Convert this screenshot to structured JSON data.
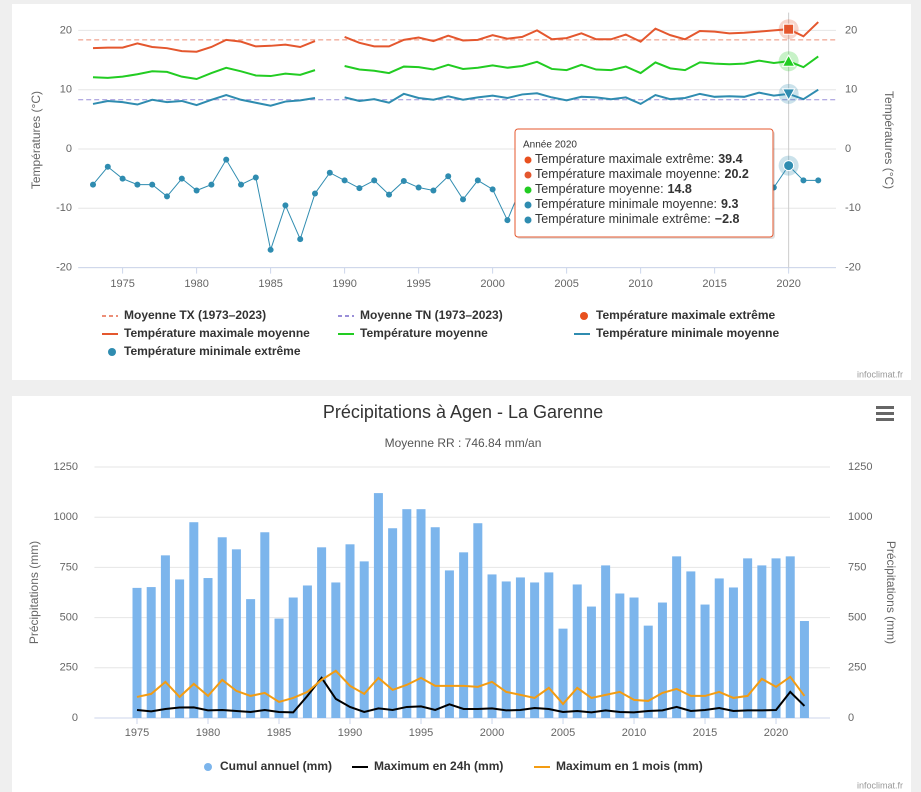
{
  "chart_data": [
    {
      "type": "line",
      "y_label": "Températures (°C)",
      "y2_label": "Températures (°C)",
      "x": [
        1973,
        1974,
        1975,
        1976,
        1977,
        1978,
        1979,
        1980,
        1981,
        1982,
        1983,
        1984,
        1985,
        1986,
        1987,
        1988,
        1989,
        1990,
        1991,
        1992,
        1993,
        1994,
        1995,
        1996,
        1997,
        1998,
        1999,
        2000,
        2001,
        2002,
        2003,
        2004,
        2005,
        2006,
        2007,
        2008,
        2009,
        2010,
        2011,
        2012,
        2013,
        2014,
        2015,
        2016,
        2017,
        2018,
        2019,
        2020,
        2021,
        2022
      ],
      "xlim": [
        1972,
        2023.2
      ],
      "xticks": [
        1975,
        1980,
        1985,
        1990,
        1995,
        2000,
        2005,
        2010,
        2015,
        2020
      ],
      "ylim": [
        -20,
        23
      ],
      "yticks": [
        -20,
        -10,
        0,
        10,
        20
      ],
      "y2lim": [
        -20,
        23
      ],
      "y2ticks": [
        -20,
        -10,
        0,
        10,
        20
      ],
      "grid": true,
      "reference_lines": [
        {
          "name": "Moyenne TX (1973–2023)",
          "color": "#ec8f78",
          "value": 18.4
        },
        {
          "name": "Moyenne TN (1973–2023)",
          "color": "#9a8fd8",
          "value": 8.3
        }
      ],
      "series": [
        {
          "name": "Température maximale extrême",
          "color": "#e8501e",
          "type": "scatter"
        },
        {
          "name": "Température maximale moyenne",
          "color": "#e4572e",
          "type": "line",
          "marker": "square",
          "values": [
            17.0,
            17.1,
            17.1,
            17.8,
            17.2,
            17.0,
            16.5,
            16.4,
            17.2,
            18.4,
            18.1,
            17.3,
            17.4,
            17.6,
            17.2,
            18.2,
            null,
            18.9,
            17.9,
            17.3,
            17.3,
            18.4,
            18.8,
            18.2,
            19.1,
            18.3,
            18.4,
            19.2,
            18.6,
            18.9,
            20.0,
            18.5,
            18.7,
            19.5,
            18.5,
            18.5,
            19.3,
            18.1,
            20.3,
            19.2,
            18.5,
            19.9,
            19.8,
            19.5,
            19.6,
            19.8,
            20.0,
            20.2,
            19.0,
            21.4
          ]
        },
        {
          "name": "Température moyenne",
          "color": "#22cc22",
          "type": "line",
          "marker": "triangle",
          "values": [
            12.1,
            12.0,
            12.2,
            12.6,
            13.1,
            13.0,
            12.2,
            11.8,
            12.8,
            13.7,
            13.1,
            12.4,
            12.3,
            12.7,
            12.5,
            13.3,
            null,
            14.0,
            13.4,
            13.2,
            12.8,
            13.9,
            13.8,
            13.4,
            14.2,
            13.5,
            13.7,
            14.1,
            13.7,
            14.0,
            14.7,
            13.5,
            13.3,
            14.2,
            13.4,
            13.3,
            13.9,
            12.8,
            14.6,
            13.6,
            13.3,
            14.6,
            14.4,
            14.3,
            14.4,
            14.9,
            14.5,
            14.8,
            13.8,
            15.6
          ]
        },
        {
          "name": "Température minimale moyenne",
          "color": "#2f8cb0",
          "type": "line",
          "marker": "triangle-down",
          "values": [
            7.6,
            8.1,
            7.9,
            7.5,
            8.3,
            7.9,
            8.1,
            7.4,
            8.3,
            9.1,
            8.3,
            7.8,
            7.3,
            8.0,
            8.2,
            8.6,
            null,
            8.7,
            8.1,
            8.4,
            7.8,
            9.3,
            8.6,
            8.3,
            8.9,
            8.3,
            8.7,
            9.0,
            8.6,
            9.2,
            9.4,
            8.7,
            8.2,
            8.8,
            8.7,
            8.4,
            8.7,
            7.6,
            9.1,
            8.4,
            8.6,
            9.3,
            8.8,
            8.9,
            8.8,
            9.5,
            9.0,
            9.3,
            8.4,
            10.0
          ]
        },
        {
          "name": "Température minimale extrême",
          "color": "#2f8cb0",
          "type": "scatter",
          "connect": true,
          "marker": "circle",
          "values": [
            -6,
            -3,
            -5,
            -6,
            -6,
            -8,
            -5,
            -7,
            -6,
            -1.8,
            -6,
            -4.8,
            -17,
            -9.5,
            -15.2,
            -7.5,
            -4,
            -5.3,
            -6.6,
            -5.3,
            -7.7,
            -5.4,
            -6.5,
            -7,
            -4.6,
            -8.5,
            -5.3,
            -6.8,
            -12,
            -6,
            -5.5,
            -7,
            -10,
            -6.5,
            -5.5,
            -6,
            -8,
            -9,
            -5,
            -13.5,
            -7,
            -4,
            -6.3,
            -5,
            -8,
            -7.8,
            -6.5,
            -2.8,
            -5.3,
            -5.3
          ]
        }
      ],
      "tooltip": {
        "title": "Année 2020",
        "x": 2020,
        "items": [
          {
            "label": "Température maximale extrême:",
            "value": 39.4,
            "color": "#e8501e"
          },
          {
            "label": "Température maximale moyenne:",
            "value": 20.2,
            "color": "#e4572e"
          },
          {
            "label": "Température moyenne:",
            "value": 14.8,
            "color": "#22cc22"
          },
          {
            "label": "Température minimale moyenne:",
            "value": 9.3,
            "color": "#2f8cb0"
          },
          {
            "label": "Température minimale extrême:",
            "value": -2.8,
            "value_label": "−2.8",
            "color": "#2f8cb0"
          }
        ]
      },
      "credit": "infoclimat.fr"
    },
    {
      "type": "bar",
      "title": "Précipitations à Agen - La Garenne",
      "subtitle": "Moyenne RR : 746.84 mm/an",
      "y_label": "Précipitations (mm)",
      "y2_label": "Précipitations (mm)",
      "x": [
        1975,
        1976,
        1977,
        1978,
        1979,
        1980,
        1981,
        1982,
        1983,
        1984,
        1985,
        1986,
        1987,
        1988,
        1989,
        1990,
        1991,
        1992,
        1993,
        1994,
        1995,
        1996,
        1997,
        1998,
        1999,
        2000,
        2001,
        2002,
        2003,
        2004,
        2005,
        2006,
        2007,
        2008,
        2009,
        2010,
        2011,
        2012,
        2013,
        2014,
        2015,
        2016,
        2017,
        2018,
        2019,
        2020,
        2021,
        2022
      ],
      "xlim": [
        1972,
        2023.8
      ],
      "xticks": [
        1975,
        1980,
        1985,
        1990,
        1995,
        2000,
        2005,
        2010,
        2015,
        2020
      ],
      "ylim": [
        0,
        1250
      ],
      "yticks": [
        0,
        250,
        500,
        750,
        1000,
        1250
      ],
      "y2lim": [
        0,
        1250
      ],
      "y2ticks": [
        0,
        250,
        500,
        750,
        1000,
        1250
      ],
      "grid": true,
      "series": [
        {
          "name": "Cumul annuel (mm)",
          "color": "#7cb5ec",
          "type": "bar",
          "values": [
            648,
            652,
            810,
            690,
            975,
            697,
            900,
            840,
            592,
            925,
            495,
            600,
            660,
            850,
            675,
            865,
            780,
            1120,
            945,
            1040,
            1040,
            950,
            735,
            825,
            970,
            715,
            680,
            700,
            675,
            725,
            445,
            665,
            555,
            760,
            620,
            600,
            460,
            575,
            805,
            730,
            565,
            695,
            650,
            795,
            760,
            795,
            805,
            483
          ]
        },
        {
          "name": "Maximum en 24h (mm)",
          "color": "#000000",
          "type": "line",
          "values": [
            40,
            33,
            45,
            52,
            53,
            38,
            40,
            35,
            30,
            40,
            30,
            28,
            110,
            200,
            95,
            55,
            30,
            48,
            40,
            55,
            58,
            40,
            68,
            45,
            45,
            48,
            38,
            40,
            50,
            45,
            30,
            35,
            28,
            38,
            30,
            28,
            35,
            38,
            55,
            35,
            40,
            50,
            35,
            38,
            38,
            40,
            130,
            60
          ]
        },
        {
          "name": "Maximum en 1 mois (mm)",
          "color": "#f39c12",
          "type": "line",
          "values": [
            105,
            120,
            180,
            105,
            170,
            110,
            190,
            135,
            110,
            125,
            80,
            100,
            130,
            190,
            235,
            160,
            120,
            200,
            140,
            165,
            200,
            160,
            160,
            160,
            155,
            180,
            130,
            115,
            100,
            150,
            70,
            150,
            100,
            115,
            130,
            90,
            85,
            125,
            145,
            110,
            110,
            130,
            100,
            110,
            195,
            155,
            205,
            110
          ]
        }
      ],
      "credit": "infoclimat.fr"
    }
  ]
}
